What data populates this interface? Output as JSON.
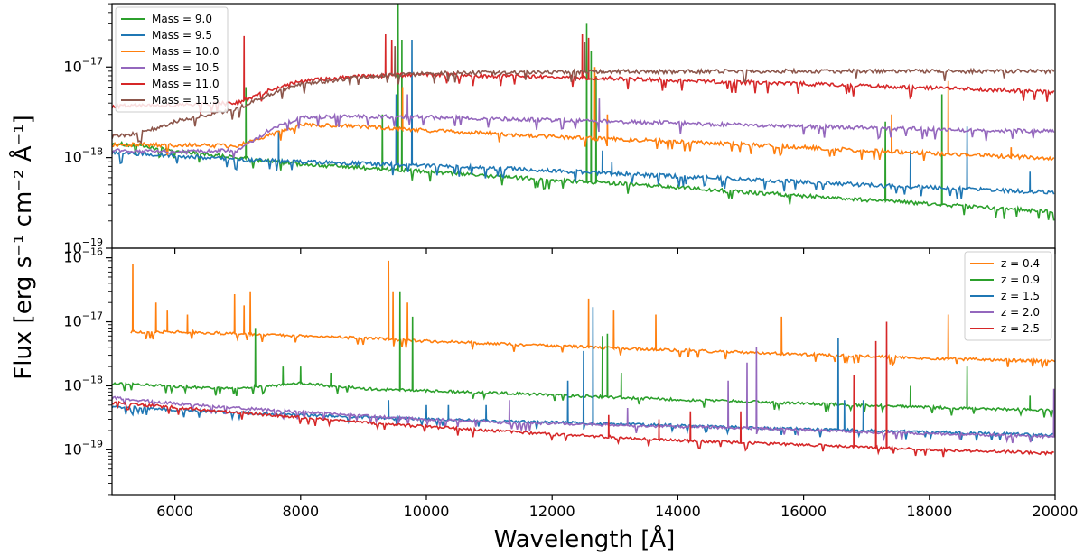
{
  "xlabel": "Wavelength [Å]",
  "ylabel": "Flux [erg s⁻¹ cm⁻² Å⁻¹]",
  "chart_data": [
    {
      "type": "line",
      "panel": "top",
      "xlim": [
        5000,
        20000
      ],
      "ylim_log10": [
        -19,
        -16.3
      ],
      "yscale": "log",
      "xticks": [
        6000,
        8000,
        10000,
        12000,
        14000,
        16000,
        18000,
        20000
      ],
      "yticks": [
        -19,
        -18,
        -17
      ],
      "legend_loc": "top-left",
      "series": [
        {
          "name": "Mass = 9.0",
          "color": "#2ca02c",
          "x": [
            5000,
            6000,
            7000,
            7300,
            8000,
            9000,
            10000,
            11000,
            12000,
            13000,
            14000,
            15000,
            16000,
            17000,
            18000,
            19000,
            20000
          ],
          "y": [
            1.45e-18,
            1.2e-18,
            1e-18,
            9.5e-19,
            8.5e-19,
            7.7e-19,
            7e-19,
            6.3e-19,
            5.7e-19,
            5.2e-19,
            4.7e-19,
            4.2e-19,
            3.8e-19,
            3.4e-19,
            3.1e-19,
            2.8e-19,
            2.5e-19
          ],
          "lines": [
            [
              7130,
              6e-18
            ],
            [
              9300,
              3e-18
            ],
            [
              9550,
              5e-17
            ],
            [
              9610,
              2e-17
            ],
            [
              12550,
              3e-17
            ],
            [
              12620,
              1.5e-17
            ],
            [
              12700,
              8e-18
            ],
            [
              17300,
              2.5e-18
            ],
            [
              18200,
              5e-18
            ]
          ]
        },
        {
          "name": "Mass = 9.5",
          "color": "#1f77b4",
          "x": [
            5000,
            6000,
            7000,
            8000,
            9000,
            10000,
            11000,
            12000,
            13000,
            14000,
            15000,
            16000,
            17000,
            18000,
            19000,
            20000
          ],
          "y": [
            1.15e-18,
            1.05e-18,
            9.5e-19,
            9e-19,
            8.6e-19,
            8.2e-19,
            7.7e-19,
            7.2e-19,
            6.7e-19,
            6.2e-19,
            5.8e-19,
            5.4e-19,
            5e-19,
            4.7e-19,
            4.4e-19,
            4.1e-19
          ],
          "lines": [
            [
              7650,
              2e-18
            ],
            [
              9520,
              5e-18
            ],
            [
              9770,
              2e-17
            ],
            [
              12800,
              1.2e-18
            ],
            [
              12950,
              9e-19
            ],
            [
              17700,
              1.2e-18
            ],
            [
              18600,
              2.2e-18
            ],
            [
              19600,
              7e-19
            ]
          ]
        },
        {
          "name": "Mass = 10.0",
          "color": "#ff7f0e",
          "x": [
            5000,
            6000,
            7000,
            8000,
            9000,
            10000,
            11000,
            12000,
            13000,
            14000,
            15000,
            16000,
            17000,
            18000,
            19000,
            20000
          ],
          "y": [
            1.4e-18,
            1.38e-18,
            1.35e-18,
            2.3e-18,
            2.2e-18,
            2e-18,
            1.85e-18,
            1.7e-18,
            1.6e-18,
            1.5e-18,
            1.4e-18,
            1.3e-18,
            1.2e-18,
            1.12e-18,
            1.05e-18,
            9.8e-19
          ],
          "lines": [
            [
              9620,
              6e-18
            ],
            [
              12680,
              1e-17
            ],
            [
              12880,
              3e-18
            ],
            [
              17400,
              3e-18
            ],
            [
              18300,
              7e-18
            ],
            [
              19300,
              1.3e-18
            ]
          ]
        },
        {
          "name": "Mass = 10.5",
          "color": "#9467bd",
          "x": [
            5000,
            6000,
            7000,
            7500,
            8000,
            9000,
            10000,
            11000,
            12000,
            13000,
            14000,
            15000,
            16000,
            17000,
            18000,
            19000,
            20000
          ],
          "y": [
            1.2e-18,
            1.15e-18,
            1.2e-18,
            2e-18,
            2.8e-18,
            2.85e-18,
            2.8e-18,
            2.7e-18,
            2.6e-18,
            2.5e-18,
            2.4e-18,
            2.3e-18,
            2.2e-18,
            2.15e-18,
            2.05e-18,
            2e-18,
            1.95e-18
          ],
          "lines": [
            [
              9700,
              5e-18
            ],
            [
              12750,
              4.5e-18
            ]
          ]
        },
        {
          "name": "Mass = 11.0",
          "color": "#d62728",
          "x": [
            5000,
            5500,
            6000,
            7000,
            7500,
            8000,
            9000,
            10000,
            11000,
            12000,
            13000,
            14000,
            15000,
            16000,
            17000,
            18000,
            19000,
            20000
          ],
          "y": [
            3.7e-18,
            3.8e-18,
            3.8e-18,
            4e-18,
            5.5e-18,
            7e-18,
            8e-18,
            8.2e-18,
            8e-18,
            7.8e-18,
            7.5e-18,
            7.1e-18,
            6.8e-18,
            6.5e-18,
            6.2e-18,
            5.9e-18,
            5.6e-18,
            5.3e-18
          ],
          "lines": [
            [
              7100,
              2.2e-17
            ],
            [
              9350,
              2.3e-17
            ],
            [
              9450,
              2e-17
            ],
            [
              12480,
              2.3e-17
            ],
            [
              12580,
              2.1e-17
            ]
          ]
        },
        {
          "name": "Mass = 11.5",
          "color": "#8c564b",
          "x": [
            5000,
            5500,
            6000,
            7000,
            7500,
            8000,
            9000,
            10000,
            11000,
            12000,
            13000,
            14000,
            15000,
            16000,
            17000,
            18000,
            19000,
            20000
          ],
          "y": [
            1.7e-18,
            1.9e-18,
            2.5e-18,
            3.5e-18,
            5e-18,
            6.5e-18,
            7.8e-18,
            8.5e-18,
            8.7e-18,
            8.8e-18,
            8.9e-18,
            8.9e-18,
            9e-18,
            9e-18,
            9e-18,
            9e-18,
            9e-18,
            9e-18
          ],
          "lines": [
            [
              9500,
              1.7e-17
            ],
            [
              12520,
              1.9e-17
            ]
          ]
        }
      ]
    },
    {
      "type": "line",
      "panel": "bottom",
      "xlim": [
        5000,
        20000
      ],
      "ylim_log10": [
        -19.7,
        -15.85
      ],
      "yscale": "log",
      "xticks": [
        6000,
        8000,
        10000,
        12000,
        14000,
        16000,
        18000,
        20000
      ],
      "yticks": [
        -19,
        -18,
        -17,
        -16
      ],
      "legend_loc": "top-right",
      "series": [
        {
          "name": "z = 0.4",
          "color": "#ff7f0e",
          "x": [
            5300,
            6000,
            7000,
            8000,
            9000,
            10000,
            11000,
            12000,
            13000,
            14000,
            15000,
            16000,
            17000,
            18000,
            19000,
            20000
          ],
          "y": [
            7e-18,
            7e-18,
            6.5e-18,
            6e-18,
            5.6e-18,
            5e-18,
            4.6e-18,
            4.2e-18,
            3.9e-18,
            3.6e-18,
            3.35e-18,
            3.1e-18,
            2.9e-18,
            2.7e-18,
            2.55e-18,
            2.4e-18
          ],
          "lines": [
            [
              5330,
              8e-17
            ],
            [
              5700,
              2e-17
            ],
            [
              5880,
              1.5e-17
            ],
            [
              6200,
              1.3e-17
            ],
            [
              6950,
              2.7e-17
            ],
            [
              7100,
              1.8e-17
            ],
            [
              7200,
              3e-17
            ],
            [
              9400,
              9e-17
            ],
            [
              9470,
              3e-17
            ],
            [
              9700,
              2e-17
            ],
            [
              12580,
              2.3e-17
            ],
            [
              12980,
              1.5e-17
            ],
            [
              13650,
              1.3e-17
            ],
            [
              15650,
              1.2e-17
            ],
            [
              18300,
              1.3e-17
            ]
          ]
        },
        {
          "name": "z = 0.9",
          "color": "#2ca02c",
          "x": [
            5000,
            6000,
            7000,
            8000,
            9000,
            10000,
            11000,
            12000,
            13000,
            14000,
            15000,
            16000,
            17000,
            18000,
            19000,
            20000
          ],
          "y": [
            1.1e-18,
            9.8e-19,
            9e-19,
            1.1e-18,
            9e-19,
            8.4e-19,
            7.8e-19,
            7.2e-19,
            6.6e-19,
            6.1e-19,
            5.7e-19,
            5.3e-19,
            4.95e-19,
            4.6e-19,
            4.35e-19,
            4.1e-19
          ],
          "lines": [
            [
              7280,
              8e-18
            ],
            [
              7720,
              2e-18
            ],
            [
              8000,
              2e-18
            ],
            [
              8480,
              1.6e-18
            ],
            [
              9580,
              3e-17
            ],
            [
              9780,
              1.2e-17
            ],
            [
              12800,
              6e-18
            ],
            [
              12880,
              6.5e-18
            ],
            [
              13100,
              1.6e-18
            ],
            [
              17700,
              1e-18
            ],
            [
              18600,
              2e-18
            ],
            [
              19600,
              7e-19
            ]
          ]
        },
        {
          "name": "z = 1.5",
          "color": "#1f77b4",
          "x": [
            5000,
            6000,
            7000,
            8000,
            9000,
            9400,
            10000,
            11000,
            12000,
            13000,
            14000,
            15000,
            16000,
            17000,
            18000,
            19000,
            20000
          ],
          "y": [
            4.8e-19,
            4.2e-19,
            3.8e-19,
            3.5e-19,
            3.25e-19,
            3.1e-19,
            3e-19,
            2.85e-19,
            2.7e-19,
            2.55e-19,
            2.4e-19,
            2.25e-19,
            2.1e-19,
            2e-19,
            1.9e-19,
            1.8e-19,
            1.7e-19
          ],
          "lines": [
            [
              9400,
              6e-19
            ],
            [
              10000,
              5e-19
            ],
            [
              10350,
              5e-19
            ],
            [
              10950,
              5e-19
            ],
            [
              12250,
              1.2e-18
            ],
            [
              12500,
              3.5e-18
            ],
            [
              12650,
              1.7e-17
            ],
            [
              16550,
              5.5e-18
            ],
            [
              16650,
              6e-19
            ],
            [
              16950,
              6e-19
            ]
          ]
        },
        {
          "name": "z = 2.0",
          "color": "#9467bd",
          "x": [
            5000,
            6000,
            7000,
            8000,
            9000,
            10000,
            11000,
            11300,
            12000,
            13000,
            14000,
            15000,
            16000,
            17000,
            18000,
            19000,
            20000
          ],
          "y": [
            6.5e-19,
            5.3e-19,
            4.5e-19,
            3.9e-19,
            3.4e-19,
            3e-19,
            2.75e-19,
            2.65e-19,
            2.6e-19,
            2.45e-19,
            2.3e-19,
            2.2e-19,
            2.05e-19,
            1.9e-19,
            1.8e-19,
            1.7e-19,
            1.6e-19
          ],
          "lines": [
            [
              11320,
              6e-19
            ],
            [
              13200,
              4.5e-19
            ],
            [
              14800,
              1.2e-18
            ],
            [
              15100,
              2.3e-18
            ],
            [
              15250,
              4e-18
            ],
            [
              19980,
              9e-19
            ]
          ]
        },
        {
          "name": "z = 2.5",
          "color": "#d62728",
          "x": [
            5000,
            6000,
            7000,
            8000,
            9000,
            10000,
            11000,
            12000,
            12900,
            13000,
            14000,
            15000,
            16000,
            17000,
            18000,
            19000,
            20000
          ],
          "y": [
            5.5e-19,
            4.6e-19,
            3.8e-19,
            3.2e-19,
            2.7e-19,
            2.3e-19,
            2e-19,
            1.75e-19,
            1.6e-19,
            1.55e-19,
            1.4e-19,
            1.3e-19,
            1.2e-19,
            1.1e-19,
            1e-19,
            9.5e-20,
            8.8e-20
          ],
          "lines": [
            [
              12900,
              3.5e-19
            ],
            [
              13700,
              3e-19
            ],
            [
              14200,
              4e-19
            ],
            [
              15000,
              4e-19
            ],
            [
              16800,
              1.5e-18
            ],
            [
              17150,
              5e-18
            ],
            [
              17320,
              1e-17
            ]
          ]
        }
      ]
    }
  ]
}
